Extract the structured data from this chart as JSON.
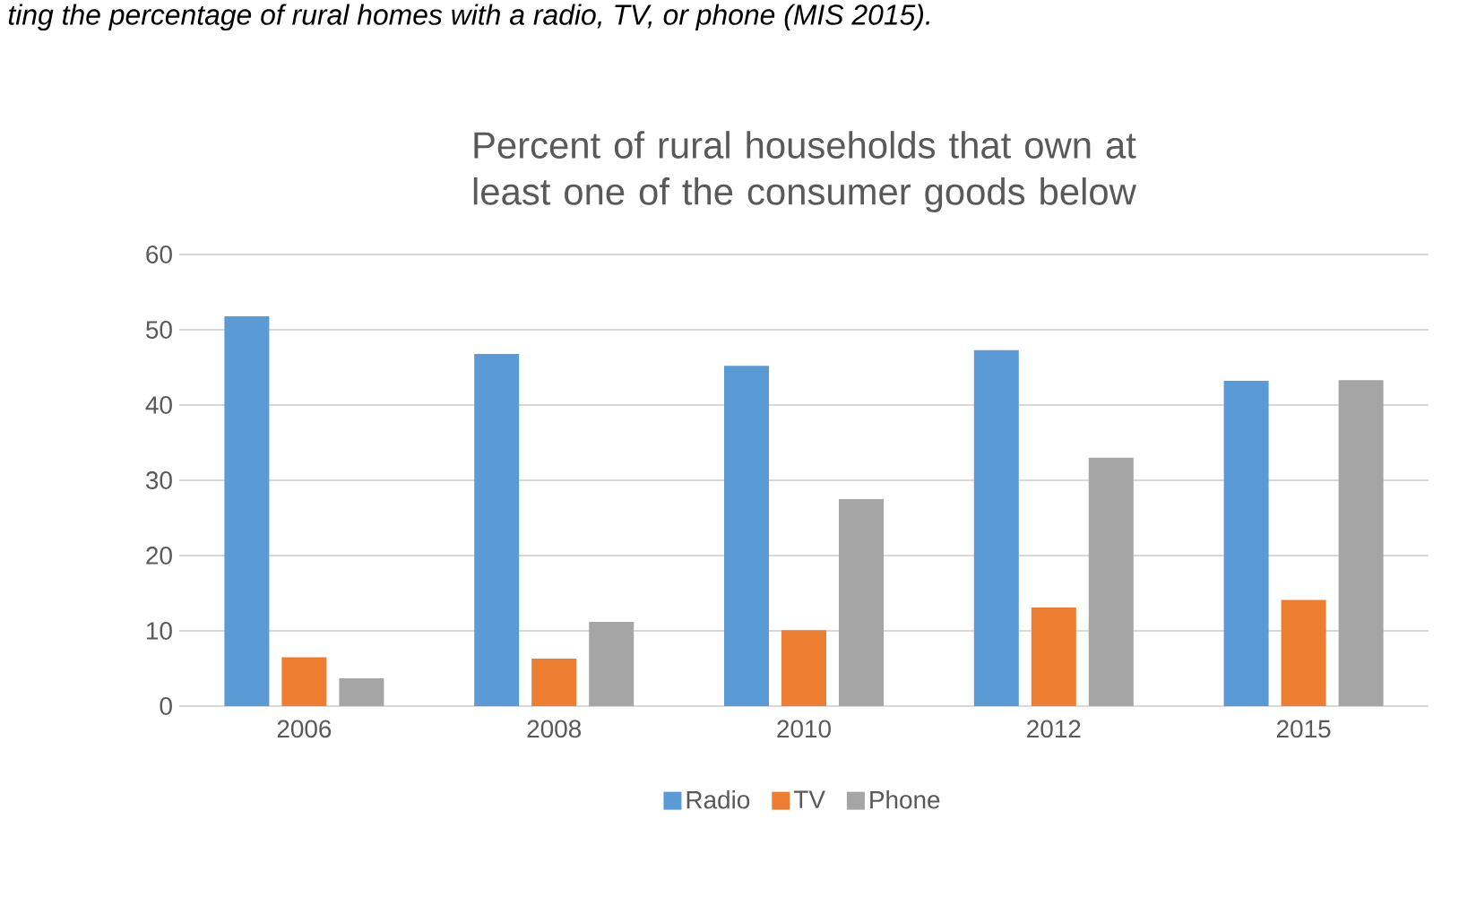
{
  "chart_data": {
    "type": "bar",
    "title": "Percent of rural households that own at least one of the consumer goods below",
    "annotations": [
      "ting the percentage of rural homes with a radio, TV, or phone (MIS 2015)."
    ],
    "categories": [
      "2006",
      "2008",
      "2010",
      "2012",
      "2015"
    ],
    "series": [
      {
        "name": "Radio",
        "color": "#5b9bd5",
        "values": [
          51.8,
          46.8,
          45.2,
          47.3,
          43.2
        ]
      },
      {
        "name": "TV",
        "color": "#ed7d31",
        "values": [
          6.5,
          6.3,
          10.1,
          13.1,
          14.1
        ]
      },
      {
        "name": "Phone",
        "color": "#a5a5a5",
        "values": [
          3.7,
          11.2,
          27.5,
          33.0,
          43.3
        ]
      }
    ],
    "ylim": [
      0,
      60
    ],
    "yticks": [
      0,
      10,
      20,
      30,
      40,
      50,
      60
    ],
    "grid": "y",
    "legend": "bottom"
  }
}
